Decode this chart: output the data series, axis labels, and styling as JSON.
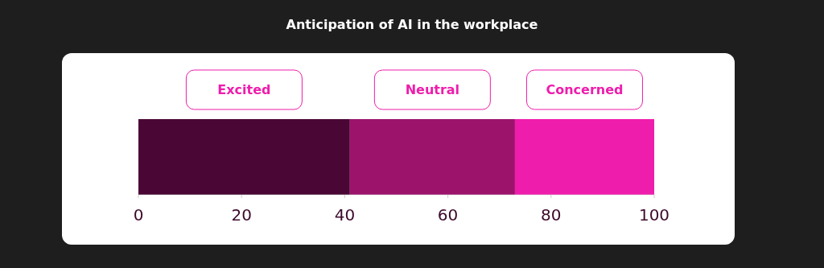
{
  "chart_data": {
    "type": "bar",
    "title": "Anticipation of AI in the workplace",
    "orientation": "horizontal",
    "stacked": true,
    "categories": [
      null
    ],
    "series": [
      {
        "name": "Excited",
        "color": "#4a0735",
        "values": [
          41
        ]
      },
      {
        "name": "Neutral",
        "color": "#9c136c",
        "values": [
          32
        ]
      },
      {
        "name": "Concerned",
        "color": "#ef1dac",
        "values": [
          27
        ]
      }
    ],
    "xlim": [
      0,
      100
    ],
    "xticks": [
      0,
      20,
      40,
      60,
      80,
      100
    ],
    "legend": "top",
    "grid": false
  }
}
